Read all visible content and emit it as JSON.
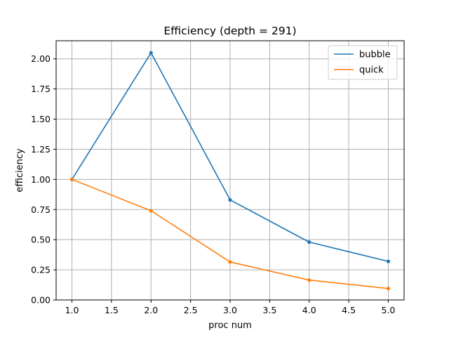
{
  "chart_data": {
    "type": "line",
    "title": "Efficiency (depth = 291)",
    "xlabel": "proc num",
    "ylabel": "efficiency",
    "x": [
      1,
      2,
      3,
      4,
      5
    ],
    "series": [
      {
        "name": "bubble",
        "color": "#1f77b4",
        "values": [
          1.0,
          2.05,
          0.83,
          0.48,
          0.32
        ]
      },
      {
        "name": "quick",
        "color": "#ff7f0e",
        "values": [
          1.0,
          0.74,
          0.315,
          0.165,
          0.095
        ]
      }
    ],
    "xlim": [
      0.8,
      5.2
    ],
    "ylim": [
      0.0,
      2.15
    ],
    "xticks": [
      1.0,
      1.5,
      2.0,
      2.5,
      3.0,
      3.5,
      4.0,
      4.5,
      5.0
    ],
    "xtick_labels": [
      "1.0",
      "1.5",
      "2.0",
      "2.5",
      "3.0",
      "3.5",
      "4.0",
      "4.5",
      "5.0"
    ],
    "yticks": [
      0.0,
      0.25,
      0.5,
      0.75,
      1.0,
      1.25,
      1.5,
      1.75,
      2.0
    ],
    "ytick_labels": [
      "0.00",
      "0.25",
      "0.50",
      "0.75",
      "1.00",
      "1.25",
      "1.50",
      "1.75",
      "2.00"
    ],
    "grid": true,
    "legend_position": "top-right",
    "marker": "dot"
  }
}
